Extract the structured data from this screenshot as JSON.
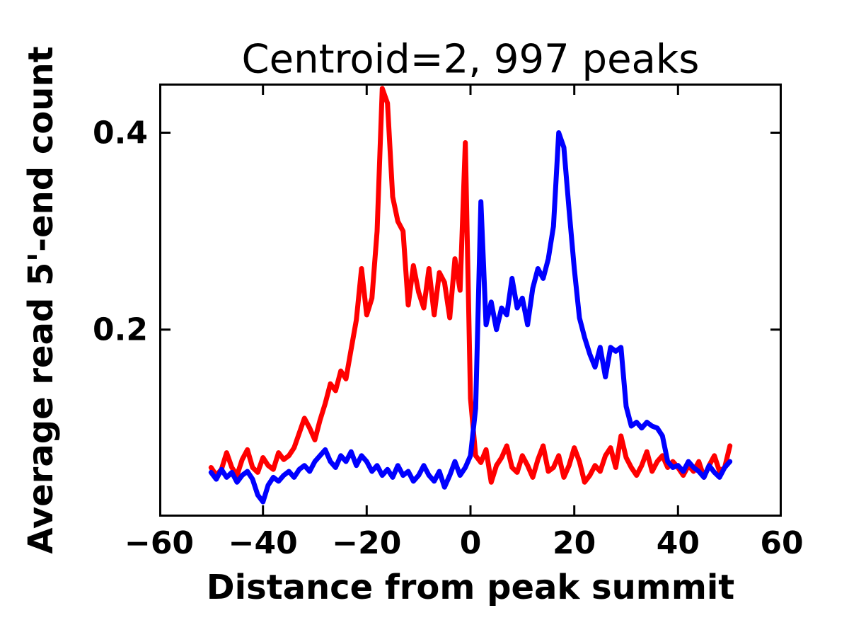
{
  "figure": {
    "title": "Centroid=2, 997 peaks",
    "xlabel": "Distance from peak summit",
    "ylabel": "Average read 5'-end count"
  },
  "chart_data": {
    "type": "line",
    "title": "Centroid=2, 997 peaks",
    "xlabel": "Distance from peak summit",
    "ylabel": "Average read 5'-end count",
    "xlim": [
      -60,
      60
    ],
    "ylim": [
      0.01,
      0.45
    ],
    "xticks": [
      -60,
      -40,
      -20,
      0,
      20,
      40,
      60
    ],
    "xticklabels": [
      "−60",
      "−40",
      "−20",
      "0",
      "20",
      "40",
      "60"
    ],
    "yticks": [
      0.2,
      0.4
    ],
    "yticklabels": [
      "0.2",
      "0.4"
    ],
    "grid": false,
    "legend": "none",
    "line_width": 7,
    "x": [
      -50,
      -49,
      -48,
      -47,
      -46,
      -45,
      -44,
      -43,
      -42,
      -41,
      -40,
      -39,
      -38,
      -37,
      -36,
      -35,
      -34,
      -33,
      -32,
      -31,
      -30,
      -29,
      -28,
      -27,
      -26,
      -25,
      -24,
      -23,
      -22,
      -21,
      -20,
      -19,
      -18,
      -17,
      -16,
      -15,
      -14,
      -13,
      -12,
      -11,
      -10,
      -9,
      -8,
      -7,
      -6,
      -5,
      -4,
      -3,
      -2,
      -1,
      0,
      1,
      2,
      3,
      4,
      5,
      6,
      7,
      8,
      9,
      10,
      11,
      12,
      13,
      14,
      15,
      16,
      17,
      18,
      19,
      20,
      21,
      22,
      23,
      24,
      25,
      26,
      27,
      28,
      29,
      30,
      31,
      32,
      33,
      34,
      35,
      36,
      37,
      38,
      39,
      40,
      41,
      42,
      43,
      44,
      45,
      46,
      47,
      48,
      49,
      50
    ],
    "series": [
      {
        "name": "red-series",
        "color": "#ff0000",
        "values": [
          0.06,
          0.052,
          0.058,
          0.075,
          0.06,
          0.052,
          0.068,
          0.078,
          0.06,
          0.055,
          0.07,
          0.062,
          0.058,
          0.075,
          0.068,
          0.072,
          0.08,
          0.095,
          0.11,
          0.1,
          0.088,
          0.108,
          0.125,
          0.145,
          0.138,
          0.158,
          0.15,
          0.18,
          0.21,
          0.262,
          0.215,
          0.232,
          0.3,
          0.445,
          0.43,
          0.335,
          0.31,
          0.3,
          0.225,
          0.265,
          0.238,
          0.222,
          0.262,
          0.215,
          0.258,
          0.248,
          0.212,
          0.272,
          0.24,
          0.39,
          0.13,
          0.072,
          0.065,
          0.078,
          0.045,
          0.062,
          0.07,
          0.082,
          0.06,
          0.055,
          0.072,
          0.062,
          0.05,
          0.068,
          0.082,
          0.056,
          0.06,
          0.072,
          0.05,
          0.062,
          0.08,
          0.066,
          0.045,
          0.052,
          0.062,
          0.056,
          0.072,
          0.08,
          0.06,
          0.092,
          0.07,
          0.06,
          0.052,
          0.062,
          0.076,
          0.056,
          0.066,
          0.072,
          0.06,
          0.066,
          0.06,
          0.052,
          0.062,
          0.056,
          0.066,
          0.05,
          0.062,
          0.072,
          0.056,
          0.06,
          0.082
        ]
      },
      {
        "name": "blue-series",
        "color": "#0000ff",
        "values": [
          0.055,
          0.048,
          0.058,
          0.05,
          0.055,
          0.045,
          0.052,
          0.056,
          0.048,
          0.032,
          0.025,
          0.042,
          0.05,
          0.046,
          0.052,
          0.056,
          0.05,
          0.058,
          0.062,
          0.056,
          0.066,
          0.072,
          0.078,
          0.066,
          0.06,
          0.072,
          0.066,
          0.076,
          0.062,
          0.072,
          0.066,
          0.056,
          0.062,
          0.052,
          0.058,
          0.05,
          0.062,
          0.052,
          0.056,
          0.046,
          0.052,
          0.062,
          0.052,
          0.046,
          0.056,
          0.04,
          0.052,
          0.066,
          0.052,
          0.06,
          0.072,
          0.12,
          0.33,
          0.205,
          0.228,
          0.2,
          0.222,
          0.215,
          0.252,
          0.222,
          0.232,
          0.205,
          0.242,
          0.262,
          0.252,
          0.272,
          0.305,
          0.4,
          0.385,
          0.322,
          0.262,
          0.212,
          0.192,
          0.175,
          0.162,
          0.182,
          0.152,
          0.182,
          0.178,
          0.182,
          0.122,
          0.102,
          0.106,
          0.1,
          0.106,
          0.102,
          0.1,
          0.092,
          0.066,
          0.06,
          0.062,
          0.056,
          0.066,
          0.06,
          0.056,
          0.05,
          0.062,
          0.055,
          0.05,
          0.06,
          0.066
        ]
      }
    ]
  }
}
